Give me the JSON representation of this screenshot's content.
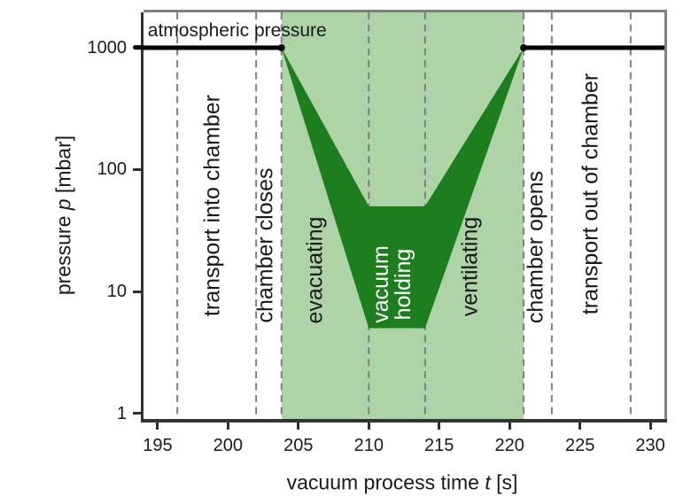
{
  "chart_data": {
    "type": "area",
    "title": "",
    "xlabel": "vacuum process time t [s]",
    "xlabel_parts": {
      "pre": "vacuum process time ",
      "var": "t",
      "post": " [s]"
    },
    "ylabel": "pressure p [mbar]",
    "ylabel_parts": {
      "pre": "pressure ",
      "var": "p",
      "post": " [mbar]"
    },
    "x_scale": "linear",
    "y_scale": "log",
    "xlim": [
      194,
      231
    ],
    "ylim": [
      0.87,
      1950
    ],
    "x_ticks": [
      195,
      200,
      205,
      210,
      215,
      220,
      225,
      230
    ],
    "y_ticks": [
      1,
      10,
      100,
      1000
    ],
    "grid": false,
    "legend": "none",
    "atmospheric_pressure_mbar": 1000,
    "atmospheric_line_segments_t": [
      [
        194,
        203.8
      ],
      [
        221,
        231
      ]
    ],
    "vacuum_window": {
      "t_start": 203.8,
      "t_end": 221
    },
    "pressure_band": {
      "upper_profile": [
        [
          203.8,
          1000
        ],
        [
          210,
          50
        ],
        [
          214,
          50
        ],
        [
          221,
          1000
        ]
      ],
      "lower_profile": [
        [
          203.8,
          1000
        ],
        [
          210,
          5
        ],
        [
          214,
          5
        ],
        [
          221,
          1000
        ]
      ]
    },
    "vacuum_holding": {
      "t_start": 210,
      "t_end": 214,
      "p_min_mbar": 5,
      "p_max_mbar": 50
    },
    "phase_boundaries_t": [
      196.4,
      202,
      203.8,
      210,
      214,
      221,
      223,
      228.6
    ],
    "annotation": {
      "text": "atmospheric pressure",
      "t_left": 194.3,
      "p": 1370
    },
    "phase_labels": [
      {
        "slug": "transport-into-chamber",
        "text": "transport into chamber",
        "t": 198.9,
        "p": 51,
        "white": false
      },
      {
        "slug": "chamber-closes",
        "text": "chamber closes",
        "t": 202.7,
        "p": 24,
        "white": false
      },
      {
        "slug": "evacuating",
        "text": "evacuating",
        "t": 206.2,
        "p": 15,
        "white": false
      },
      {
        "slug": "vacuum-holding",
        "text": "vacuum\nholding",
        "t": 211.7,
        "p": 11.5,
        "white": true
      },
      {
        "slug": "ventilating",
        "text": "ventilating",
        "t": 217.2,
        "p": 16,
        "white": false
      },
      {
        "slug": "chamber-opens",
        "text": "chamber opens",
        "t": 221.9,
        "p": 23,
        "white": false
      },
      {
        "slug": "transport-out-of-chamber",
        "text": "transport out of chamber",
        "t": 225.8,
        "p": 63,
        "white": false
      }
    ],
    "colors": {
      "band": "#1e7d1e",
      "window_bg": "#aed3a7",
      "dashed": "#7f7f7f",
      "line": "#000000",
      "text": "#1a1a1a",
      "label_white": "#ffffff",
      "axis": "#333333",
      "frame": "#7f7f7f"
    }
  }
}
